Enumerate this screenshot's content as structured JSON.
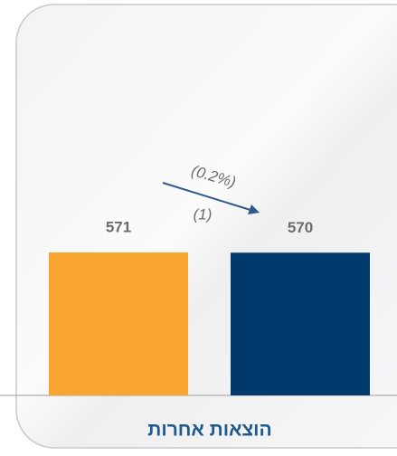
{
  "chart_data": {
    "type": "bar",
    "title": "הוצאות אחרות",
    "categories": [
      null,
      null
    ],
    "values": [
      571,
      570
    ],
    "colors": [
      "#f8a532",
      "#003a6c"
    ],
    "annotations": [
      "(0.2%)",
      "(1)"
    ]
  }
}
